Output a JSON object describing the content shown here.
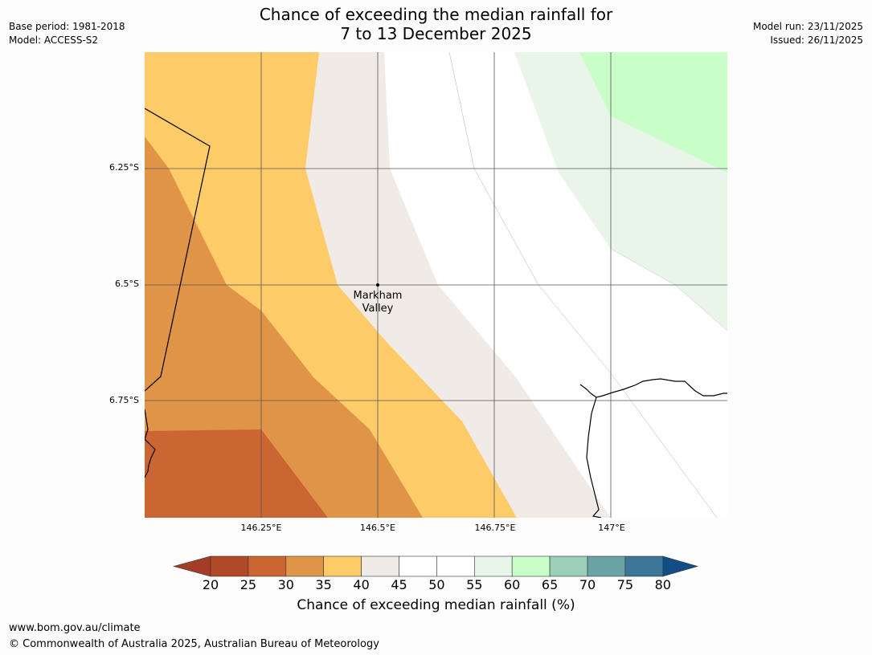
{
  "title": {
    "line1": "Chance of exceeding the median rainfall for",
    "line2": "7 to 13 December 2025"
  },
  "meta": {
    "base_period": "Base period: 1981-2018",
    "model": "Model: ACCESS-S2",
    "model_run": "Model run: 23/11/2025",
    "issued": "Issued: 26/11/2025"
  },
  "map": {
    "lat_labels": [
      "6.25°S",
      "6.5°S",
      "6.75°S"
    ],
    "lon_labels": [
      "146.25°E",
      "146.5°E",
      "146.75°E",
      "147°E"
    ],
    "place": {
      "name_line1": "Markham",
      "name_line2": "Valley",
      "lon": 146.5,
      "lat": -6.5
    },
    "extent": {
      "lon_min": 146.0,
      "lon_max": 147.25,
      "lat_min": -7.0,
      "lat_max": -6.0
    }
  },
  "colorbar": {
    "ticks": [
      "20",
      "25",
      "30",
      "35",
      "40",
      "45",
      "50",
      "55",
      "60",
      "65",
      "70",
      "75",
      "80"
    ],
    "colors": [
      "#a43d28",
      "#b04a27",
      "#cb6532",
      "#e09448",
      "#fecb69",
      "#f0ebe6",
      "#ffffff",
      "#ffffff",
      "#e9f5e9",
      "#c9fec9",
      "#9ccfb8",
      "#6aa3a6",
      "#3c7698",
      "#134d86"
    ],
    "label": "Chance of exceeding median rainfall (%)"
  },
  "footer": {
    "url": "www.bom.gov.au/climate",
    "copyright": "© Commonwealth of Australia 2025, Australian Bureau of Meteorology"
  }
}
